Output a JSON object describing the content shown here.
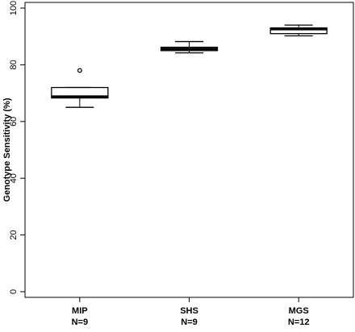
{
  "chart_data": {
    "type": "box",
    "title": "",
    "xlabel": "",
    "ylabel": "Genotype Sensitivity (%)",
    "ylim": [
      -2,
      102
    ],
    "yticks": [
      0,
      20,
      40,
      60,
      80,
      100
    ],
    "grid": false,
    "legend": "none",
    "categories": [
      {
        "name": "MIP",
        "n_label": "N=9",
        "whisker_low": 65,
        "q1": 68.3,
        "median": 68.8,
        "q3": 72,
        "whisker_high": 72,
        "outliers": [
          78
        ]
      },
      {
        "name": "SHS",
        "n_label": "N=9",
        "whisker_low": 84.2,
        "q1": 85.0,
        "median": 85.6,
        "q3": 86.2,
        "whisker_high": 88.2,
        "outliers": []
      },
      {
        "name": "MGS",
        "n_label": "N=12",
        "whisker_low": 90.2,
        "q1": 91.0,
        "median": 92.6,
        "q3": 93.0,
        "whisker_high": 94.0,
        "outliers": []
      }
    ],
    "colors": {
      "box_fill": "#ffffff",
      "stroke": "#000000"
    }
  }
}
